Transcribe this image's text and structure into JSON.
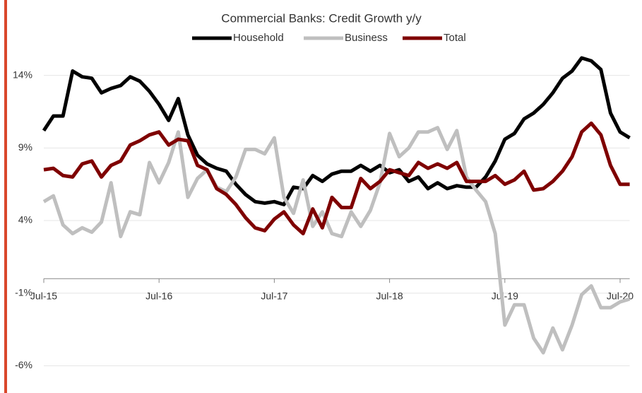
{
  "chart_data": {
    "type": "line",
    "title": "Commercial Banks: Credit Growth y/y",
    "categories": [
      "Jul-15",
      null,
      null,
      null,
      null,
      null,
      null,
      null,
      null,
      null,
      null,
      null,
      "Jul-16",
      null,
      null,
      null,
      null,
      null,
      null,
      null,
      null,
      null,
      null,
      null,
      "Jul-17",
      null,
      null,
      null,
      null,
      null,
      null,
      null,
      null,
      null,
      null,
      null,
      "Jul-18",
      null,
      null,
      null,
      null,
      null,
      null,
      null,
      null,
      null,
      null,
      null,
      "Jul-19",
      null,
      null,
      null,
      null,
      null,
      null,
      null,
      null,
      null,
      null,
      null,
      "Jul-20",
      null
    ],
    "series": [
      {
        "name": "Household",
        "color": "#000000",
        "values": [
          10.2,
          11.2,
          11.2,
          14.3,
          13.9,
          13.8,
          12.8,
          13.1,
          13.3,
          13.9,
          13.6,
          12.9,
          12.0,
          10.9,
          12.4,
          9.9,
          8.5,
          7.9,
          7.6,
          7.4,
          6.5,
          5.8,
          5.3,
          5.2,
          5.3,
          5.1,
          6.3,
          6.2,
          7.1,
          6.7,
          7.2,
          7.4,
          7.4,
          7.8,
          7.4,
          7.8,
          7.3,
          7.5,
          6.7,
          7.0,
          6.2,
          6.6,
          6.2,
          6.4,
          6.3,
          6.3,
          7.0,
          8.1,
          9.6,
          10.0,
          11.0,
          11.4,
          12.0,
          12.8,
          13.8,
          14.3,
          15.2,
          15.0,
          14.4,
          11.4,
          10.1,
          9.7
        ]
      },
      {
        "name": "Business",
        "color": "#bfbfbf",
        "values": [
          5.3,
          5.7,
          3.7,
          3.1,
          3.5,
          3.2,
          3.9,
          6.6,
          2.9,
          4.6,
          4.4,
          8.0,
          6.6,
          8.0,
          10.1,
          5.6,
          6.9,
          7.5,
          6.3,
          6.0,
          7.0,
          8.9,
          8.9,
          8.6,
          9.7,
          5.6,
          4.5,
          6.8,
          3.6,
          4.6,
          3.1,
          2.9,
          4.6,
          3.6,
          4.7,
          6.6,
          10.0,
          8.4,
          9.0,
          10.1,
          10.1,
          10.4,
          8.9,
          10.2,
          7.0,
          6.1,
          5.3,
          3.1,
          -3.2,
          -1.8,
          -1.8,
          -4.1,
          -5.1,
          -3.4,
          -4.9,
          -3.2,
          -1.1,
          -0.5,
          -2.0,
          -2.0,
          -1.6,
          -1.4
        ]
      },
      {
        "name": "Total",
        "color": "#7f0000",
        "values": [
          7.5,
          7.6,
          7.1,
          7.0,
          7.9,
          8.1,
          7.0,
          7.8,
          8.1,
          9.2,
          9.5,
          9.9,
          10.1,
          9.2,
          9.6,
          9.5,
          7.8,
          7.5,
          6.2,
          5.8,
          5.1,
          4.2,
          3.5,
          3.3,
          4.1,
          4.6,
          3.7,
          3.1,
          4.8,
          3.5,
          5.6,
          4.9,
          4.9,
          6.9,
          6.2,
          6.7,
          7.5,
          7.3,
          7.1,
          8.0,
          7.6,
          7.9,
          7.6,
          8.0,
          6.7,
          6.7,
          6.7,
          7.1,
          6.5,
          6.8,
          7.4,
          6.1,
          6.2,
          6.7,
          7.4,
          8.4,
          10.1,
          10.7,
          9.9,
          7.8,
          6.5,
          6.5
        ]
      }
    ],
    "ylim": [
      -7,
      17
    ],
    "yticks": [
      {
        "value": -6,
        "label": "-6%"
      },
      {
        "value": -1,
        "label": "-1%"
      },
      {
        "value": 4,
        "label": "4%"
      },
      {
        "value": 9,
        "label": "9%"
      },
      {
        "value": 14,
        "label": "14%"
      }
    ],
    "grid": true
  }
}
